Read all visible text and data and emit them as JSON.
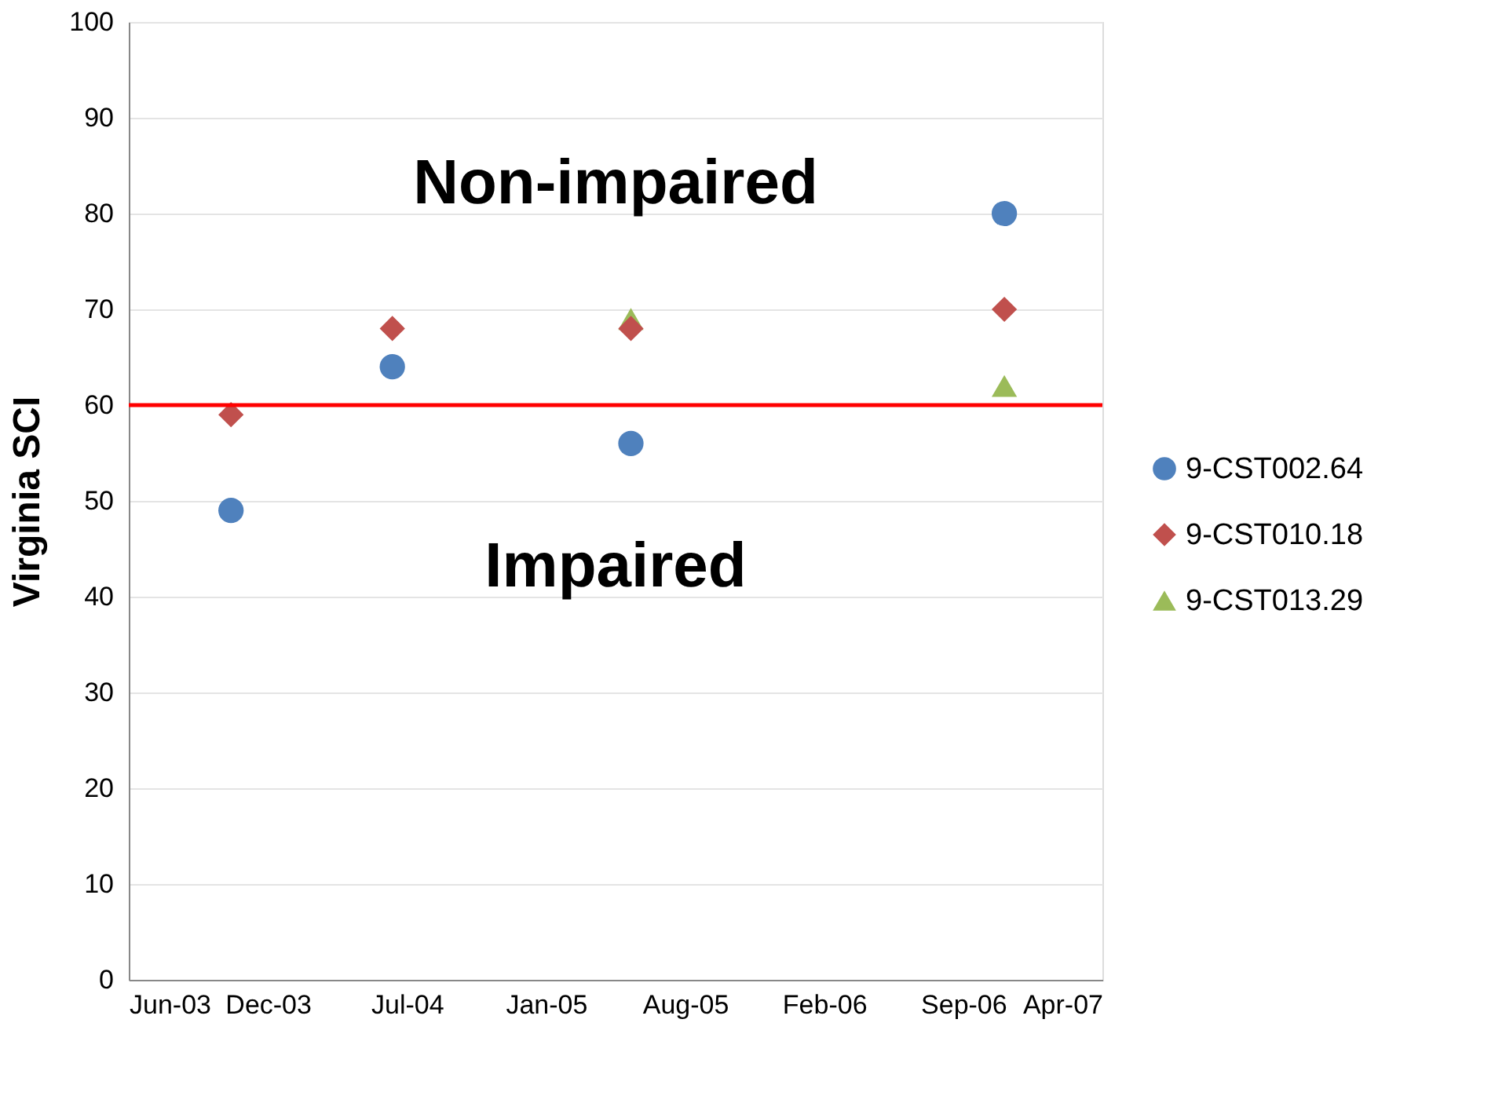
{
  "chart_data": {
    "type": "scatter",
    "ylabel": "Virginia SCI",
    "x": [
      "2003-10-26",
      "2004-06-14",
      "2005-05-23",
      "2006-11-11"
    ],
    "series": [
      {
        "name": "9-CST002.64",
        "color": "#4f81bd",
        "marker": "circle",
        "values": [
          49,
          64,
          56,
          80
        ]
      },
      {
        "name": "9-CST010.18",
        "color": "#c0504d",
        "marker": "diamond",
        "values": [
          59,
          68,
          68,
          70
        ]
      },
      {
        "name": "9-CST013.29",
        "color": "#9bbb59",
        "marker": "triangle",
        "values": [
          null,
          null,
          69,
          62
        ]
      }
    ],
    "xlim": [
      "2003-06-01",
      "2007-04-01"
    ],
    "xticks": [
      {
        "value": "2003-06-01",
        "label": "Jun-03"
      },
      {
        "value": "2003-12-18",
        "label": "Dec-03"
      },
      {
        "value": "2004-07-05",
        "label": "Jul-04"
      },
      {
        "value": "2005-01-21",
        "label": "Jan-05"
      },
      {
        "value": "2005-08-09",
        "label": "Aug-05"
      },
      {
        "value": "2006-02-25",
        "label": "Feb-06"
      },
      {
        "value": "2006-09-13",
        "label": "Sep-06"
      },
      {
        "value": "2007-04-01",
        "label": "Apr-07"
      }
    ],
    "ylim": [
      0,
      100
    ],
    "yticks": [
      0,
      10,
      20,
      30,
      40,
      50,
      60,
      70,
      80,
      90,
      100
    ],
    "ref_lines": [
      {
        "axis": "y",
        "value": 60,
        "color": "#ff0000",
        "line_style": "solid"
      }
    ],
    "annotations": [
      "Non-impaired",
      "Impaired"
    ],
    "grid": "y",
    "legend": "right"
  }
}
